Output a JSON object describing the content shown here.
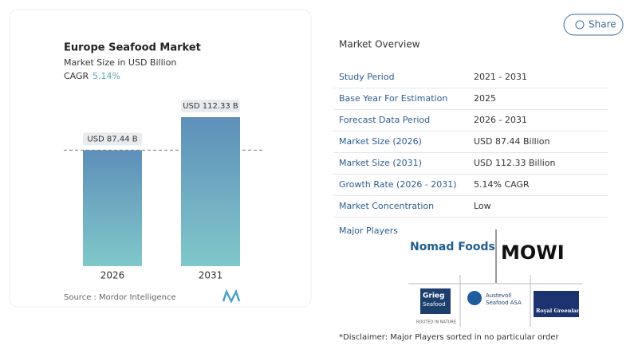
{
  "chart_data": {
    "type": "bar",
    "title": "Europe Seafood Market",
    "subtitle": "Market Size in USD Billion",
    "cagr_label": "CAGR",
    "cagr_value": "5.14%",
    "categories": [
      "2026",
      "2031"
    ],
    "values": [
      87.44,
      112.33
    ],
    "value_labels": [
      "USD 87.44 B",
      "USD 112.33 B"
    ],
    "source_label": "Source :",
    "source": "Mordor Intelligence"
  },
  "share": "Share",
  "overview": {
    "title": "Market Overview",
    "rows": [
      [
        "Study Period",
        "2021 - 2031"
      ],
      [
        "Base Year For Estimation",
        "2025"
      ],
      [
        "Forecast Data Period",
        "2026 - 2031"
      ],
      [
        "Market Size (2026)",
        "USD 87.44 Billion"
      ],
      [
        "Market Size (2031)",
        "USD 112.33 Billion"
      ],
      [
        "Growth Rate (2026 - 2031)",
        "5.14% CAGR"
      ],
      [
        "Market Concentration",
        "Low"
      ]
    ]
  },
  "players": {
    "title": "Major Players",
    "logos": [
      "Nomad Foods",
      "MOWI",
      "Grieg",
      "Seafood",
      "ROOTED IN NATURE",
      "Austevoll",
      "Seafood ASA",
      "Royal Greenland"
    ]
  },
  "disclaimer": "*Disclaimer: Major Players sorted in no particular order"
}
